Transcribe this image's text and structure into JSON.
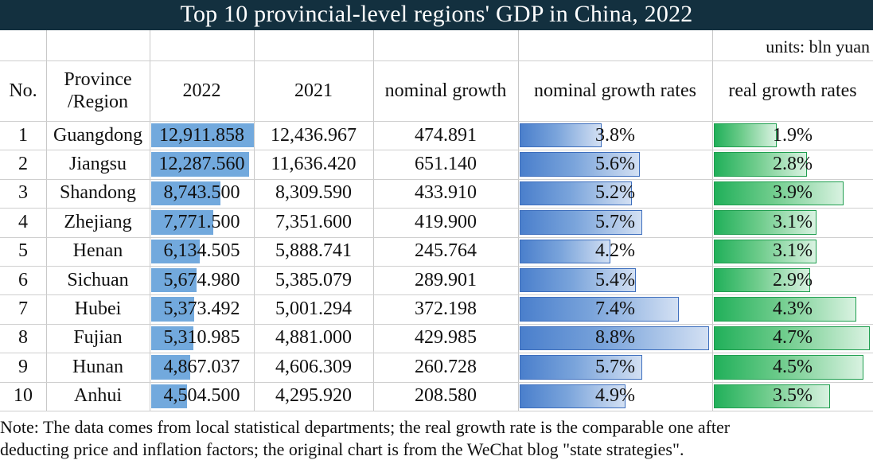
{
  "title": "Top 10 provincial-level regions' GDP in China, 2022",
  "units": "units: bln yuan",
  "colors": {
    "title_bg": "#13303f",
    "gdp_bar": "#72a9dd",
    "nominal_bar": "#4a7fcc",
    "real_bar": "#21b05a"
  },
  "headers": {
    "no": "No.",
    "province_line1": "Province",
    "province_line2": "/Region",
    "y2022": "2022",
    "y2021": "2021",
    "nominal_growth": "nominal growth",
    "nominal_growth_rates": "nominal growth rates",
    "real_growth_rates": "real growth rates"
  },
  "rows": [
    {
      "no": "1",
      "province": "Guangdong",
      "gdp2022": "12,911.858",
      "gdp2021": "12,436.967",
      "nominal_growth": "474.891",
      "nominal_rate": "3.8%",
      "real_rate": "1.9%"
    },
    {
      "no": "2",
      "province": "Jiangsu",
      "gdp2022": "12,287.560",
      "gdp2021": "11,636.420",
      "nominal_growth": "651.140",
      "nominal_rate": "5.6%",
      "real_rate": "2.8%"
    },
    {
      "no": "3",
      "province": "Shandong",
      "gdp2022": "8,743.500",
      "gdp2021": "8,309.590",
      "nominal_growth": "433.910",
      "nominal_rate": "5.2%",
      "real_rate": "3.9%"
    },
    {
      "no": "4",
      "province": "Zhejiang",
      "gdp2022": "7,771.500",
      "gdp2021": "7,351.600",
      "nominal_growth": "419.900",
      "nominal_rate": "5.7%",
      "real_rate": "3.1%"
    },
    {
      "no": "5",
      "province": "Henan",
      "gdp2022": "6,134.505",
      "gdp2021": "5,888.741",
      "nominal_growth": "245.764",
      "nominal_rate": "4.2%",
      "real_rate": "3.1%"
    },
    {
      "no": "6",
      "province": "Sichuan",
      "gdp2022": "5,674.980",
      "gdp2021": "5,385.079",
      "nominal_growth": "289.901",
      "nominal_rate": "5.4%",
      "real_rate": "2.9%"
    },
    {
      "no": "7",
      "province": "Hubei",
      "gdp2022": "5,373.492",
      "gdp2021": "5,001.294",
      "nominal_growth": "372.198",
      "nominal_rate": "7.4%",
      "real_rate": "4.3%"
    },
    {
      "no": "8",
      "province": "Fujian",
      "gdp2022": "5,310.985",
      "gdp2021": "4,881.000",
      "nominal_growth": "429.985",
      "nominal_rate": "8.8%",
      "real_rate": "4.7%"
    },
    {
      "no": "9",
      "province": "Hunan",
      "gdp2022": "4,867.037",
      "gdp2021": "4,606.309",
      "nominal_growth": "260.728",
      "nominal_rate": "5.7%",
      "real_rate": "4.5%"
    },
    {
      "no": "10",
      "province": "Anhui",
      "gdp2022": "4,504.500",
      "gdp2021": "4,295.920",
      "nominal_growth": "208.580",
      "nominal_rate": "4.9%",
      "real_rate": "3.5%"
    }
  ],
  "note_line1": "Note: The data comes from local statistical departments; the real growth rate is the comparable one after",
  "note_line2": "deducting price and inflation factors;  the original chart is from the WeChat blog \"state strategies\".",
  "chart_data": {
    "type": "table",
    "title": "Top 10 provincial-level regions' GDP in China, 2022",
    "units": "bln yuan",
    "columns": [
      "No.",
      "Province /Region",
      "2022",
      "2021",
      "nominal growth",
      "nominal growth rates",
      "real growth rates"
    ],
    "categories": [
      "Guangdong",
      "Jiangsu",
      "Shandong",
      "Zhejiang",
      "Henan",
      "Sichuan",
      "Hubei",
      "Fujian",
      "Hunan",
      "Anhui"
    ],
    "series": [
      {
        "name": "2022",
        "values": [
          12911.858,
          12287.56,
          8743.5,
          7771.5,
          6134.505,
          5674.98,
          5373.492,
          5310.985,
          4867.037,
          4504.5
        ]
      },
      {
        "name": "2021",
        "values": [
          12436.967,
          11636.42,
          8309.59,
          7351.6,
          5888.741,
          5385.079,
          5001.294,
          4881.0,
          4606.309,
          4295.92
        ]
      },
      {
        "name": "nominal growth",
        "values": [
          474.891,
          651.14,
          433.91,
          419.9,
          245.764,
          289.901,
          372.198,
          429.985,
          260.728,
          208.58
        ]
      },
      {
        "name": "nominal growth rates",
        "values": [
          3.8,
          5.6,
          5.2,
          5.7,
          4.2,
          5.4,
          7.4,
          8.8,
          5.7,
          4.9
        ]
      },
      {
        "name": "real growth rates",
        "values": [
          1.9,
          2.8,
          3.9,
          3.1,
          3.1,
          2.9,
          4.3,
          4.7,
          4.5,
          3.5
        ]
      }
    ]
  }
}
